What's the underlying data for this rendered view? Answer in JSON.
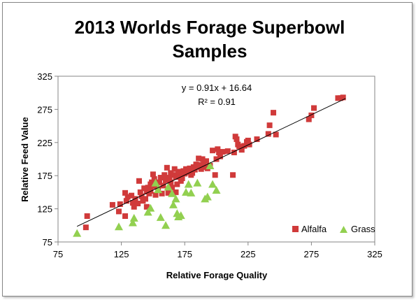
{
  "chart_data": {
    "type": "scatter",
    "title_line1": "2013 Worlds Forage Superbowl",
    "title_line2": "Samples",
    "xlabel": "Relative Forage Quality",
    "ylabel": "Relative Feed Value",
    "xlim": [
      75,
      325
    ],
    "ylim": [
      75,
      325
    ],
    "xticks": [
      "75",
      "125",
      "175",
      "225",
      "275",
      "325"
    ],
    "yticks": [
      "75",
      "125",
      "175",
      "225",
      "275",
      "325"
    ],
    "trendline": {
      "equation": "y = 0.91x + 16.64",
      "r2": "R² = 0.91",
      "slope": 0.91,
      "intercept": 16.64,
      "x_range": [
        90,
        302
      ]
    },
    "legend_position": "bottom-right",
    "series": [
      {
        "name": "Alfalfa",
        "color": "#d03a3a",
        "marker": "square",
        "points": [
          [
            97,
            97
          ],
          [
            98,
            114
          ],
          [
            118,
            131
          ],
          [
            123,
            121
          ],
          [
            124,
            132
          ],
          [
            128,
            114
          ],
          [
            128,
            149
          ],
          [
            129,
            137
          ],
          [
            130,
            143
          ],
          [
            133,
            145
          ],
          [
            134,
            134
          ],
          [
            135,
            128
          ],
          [
            136,
            140
          ],
          [
            138,
            133
          ],
          [
            139,
            167
          ],
          [
            140,
            150
          ],
          [
            141,
            144
          ],
          [
            142,
            137
          ],
          [
            143,
            156
          ],
          [
            144,
            140
          ],
          [
            145,
            128
          ],
          [
            145,
            151
          ],
          [
            146,
            157
          ],
          [
            147,
            148
          ],
          [
            148,
            152
          ],
          [
            148,
            162
          ],
          [
            149,
            165
          ],
          [
            150,
            159
          ],
          [
            150,
            177
          ],
          [
            151,
            170
          ],
          [
            152,
            146
          ],
          [
            153,
            162
          ],
          [
            154,
            154
          ],
          [
            155,
            165
          ],
          [
            156,
            172
          ],
          [
            157,
            148
          ],
          [
            158,
            160
          ],
          [
            159,
            176
          ],
          [
            160,
            168
          ],
          [
            161,
            187
          ],
          [
            162,
            149
          ],
          [
            163,
            172
          ],
          [
            164,
            165
          ],
          [
            164,
            179
          ],
          [
            165,
            157
          ],
          [
            166,
            176
          ],
          [
            167,
            185
          ],
          [
            168,
            173
          ],
          [
            168,
            150
          ],
          [
            169,
            162
          ],
          [
            170,
            181
          ],
          [
            171,
            175
          ],
          [
            172,
            167
          ],
          [
            173,
            171
          ],
          [
            174,
            182
          ],
          [
            175,
            178
          ],
          [
            176,
            185
          ],
          [
            177,
            183
          ],
          [
            178,
            180
          ],
          [
            179,
            186
          ],
          [
            180,
            176
          ],
          [
            181,
            179
          ],
          [
            182,
            188
          ],
          [
            183,
            184
          ],
          [
            184,
            192
          ],
          [
            185,
            188
          ],
          [
            186,
            201
          ],
          [
            187,
            191
          ],
          [
            188,
            185
          ],
          [
            189,
            200
          ],
          [
            190,
            195
          ],
          [
            191,
            188
          ],
          [
            192,
            197
          ],
          [
            193,
            186
          ],
          [
            195,
            190
          ],
          [
            197,
            213
          ],
          [
            199,
            176
          ],
          [
            200,
            200
          ],
          [
            201,
            215
          ],
          [
            202,
            210
          ],
          [
            203,
            204
          ],
          [
            205,
            211
          ],
          [
            209,
            212
          ],
          [
            213,
            176
          ],
          [
            214,
            210
          ],
          [
            215,
            234
          ],
          [
            216,
            230
          ],
          [
            217,
            222
          ],
          [
            218,
            219
          ],
          [
            220,
            214
          ],
          [
            222,
            220
          ],
          [
            224,
            226
          ],
          [
            225,
            228
          ],
          [
            226,
            222
          ],
          [
            232,
            230
          ],
          [
            241,
            238
          ],
          [
            242,
            251
          ],
          [
            245,
            270
          ],
          [
            247,
            237
          ],
          [
            273,
            260
          ],
          [
            275,
            266
          ],
          [
            277,
            277
          ],
          [
            296,
            292
          ],
          [
            298,
            292
          ],
          [
            300,
            293
          ]
        ]
      },
      {
        "name": "Grass",
        "color": "#92d050",
        "marker": "triangle",
        "points": [
          [
            90,
            88
          ],
          [
            123,
            98
          ],
          [
            134,
            104
          ],
          [
            135,
            111
          ],
          [
            146,
            120
          ],
          [
            148,
            126
          ],
          [
            152,
            164
          ],
          [
            154,
            154
          ],
          [
            156,
            112
          ],
          [
            160,
            100
          ],
          [
            162,
            158
          ],
          [
            165,
            148
          ],
          [
            166,
            131
          ],
          [
            168,
            140
          ],
          [
            169,
            118
          ],
          [
            170,
            113
          ],
          [
            172,
            115
          ],
          [
            176,
            150
          ],
          [
            178,
            162
          ],
          [
            180,
            149
          ],
          [
            185,
            164
          ],
          [
            191,
            140
          ],
          [
            193,
            143
          ],
          [
            195,
            190
          ],
          [
            197,
            162
          ],
          [
            200,
            153
          ]
        ]
      }
    ]
  }
}
